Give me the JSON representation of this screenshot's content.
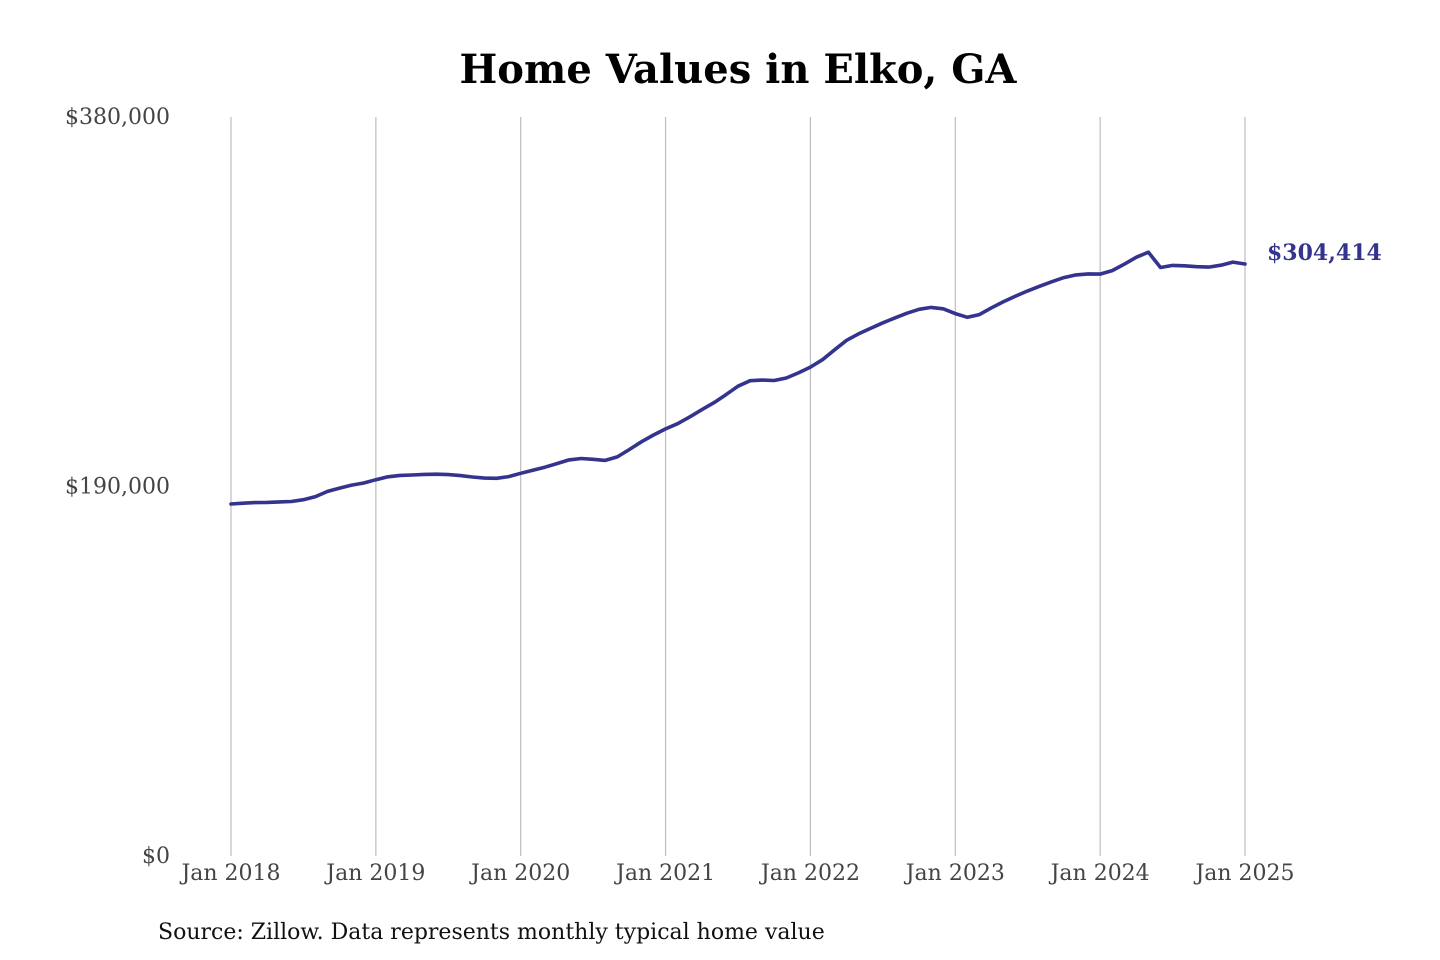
{
  "chart_data": {
    "type": "line",
    "title": "Home Values in Elko, GA",
    "xlabel": "",
    "ylabel": "",
    "source": "Source: Zillow. Data represents monthly typical home value",
    "ylim": [
      0,
      380000
    ],
    "y_ticks": [
      {
        "value": 0,
        "label": "$0"
      },
      {
        "value": 190000,
        "label": "$190,000"
      },
      {
        "value": 380000,
        "label": "$380,000"
      }
    ],
    "x_ticks": [
      {
        "value": 2018.0,
        "label": "Jan 2018"
      },
      {
        "value": 2019.0,
        "label": "Jan 2019"
      },
      {
        "value": 2020.0,
        "label": "Jan 2020"
      },
      {
        "value": 2021.0,
        "label": "Jan 2021"
      },
      {
        "value": 2022.0,
        "label": "Jan 2022"
      },
      {
        "value": 2023.0,
        "label": "Jan 2023"
      },
      {
        "value": 2024.0,
        "label": "Jan 2024"
      },
      {
        "value": 2025.0,
        "label": "Jan 2025"
      }
    ],
    "grid": "vertical",
    "line_color": "#34348f",
    "end_label": "$304,414",
    "series": [
      {
        "x": [
          "2018-01",
          "2018-02",
          "2018-03",
          "2018-04",
          "2018-05",
          "2018-06",
          "2018-07",
          "2018-08",
          "2018-09",
          "2018-10",
          "2018-11",
          "2018-12",
          "2019-01",
          "2019-02",
          "2019-03",
          "2019-04",
          "2019-05",
          "2019-06",
          "2019-07",
          "2019-08",
          "2019-09",
          "2019-10",
          "2019-11",
          "2019-12",
          "2020-01",
          "2020-02",
          "2020-03",
          "2020-04",
          "2020-05",
          "2020-06",
          "2020-07",
          "2020-08",
          "2020-09",
          "2020-10",
          "2020-11",
          "2020-12",
          "2021-01",
          "2021-02",
          "2021-03",
          "2021-04",
          "2021-05",
          "2021-06",
          "2021-07",
          "2021-08",
          "2021-09",
          "2021-10",
          "2021-11",
          "2021-12",
          "2022-01",
          "2022-02",
          "2022-03",
          "2022-04",
          "2022-05",
          "2022-06",
          "2022-07",
          "2022-08",
          "2022-09",
          "2022-10",
          "2022-11",
          "2022-12",
          "2023-01",
          "2023-02",
          "2023-03",
          "2023-04",
          "2023-05",
          "2023-06",
          "2023-07",
          "2023-08",
          "2023-09",
          "2023-10",
          "2023-11",
          "2023-12",
          "2024-01",
          "2024-02",
          "2024-03",
          "2024-04",
          "2024-05",
          "2024-06",
          "2024-07",
          "2024-08",
          "2024-09",
          "2024-10",
          "2024-11",
          "2024-12",
          "2025-01"
        ],
        "values": [
          181000,
          181400,
          181700,
          181800,
          182100,
          182300,
          183200,
          184800,
          187500,
          189200,
          190700,
          191800,
          193500,
          195000,
          195700,
          195900,
          196200,
          196300,
          196100,
          195600,
          194900,
          194300,
          194200,
          195100,
          196800,
          198400,
          199900,
          201800,
          203700,
          204400,
          204000,
          203400,
          205200,
          209000,
          213000,
          216500,
          219600,
          222300,
          225800,
          229500,
          233100,
          237200,
          241600,
          244400,
          244700,
          244500,
          245800,
          248400,
          251400,
          255200,
          260300,
          265200,
          268500,
          271400,
          274200,
          276700,
          279100,
          281100,
          282100,
          281400,
          278900,
          277000,
          278400,
          281900,
          285100,
          287900,
          290600,
          293000,
          295300,
          297400,
          298800,
          299300,
          299200,
          301000,
          304300,
          307900,
          310500,
          302600,
          303700,
          303500,
          303000,
          302800,
          303800,
          305400,
          304414
        ]
      }
    ]
  }
}
